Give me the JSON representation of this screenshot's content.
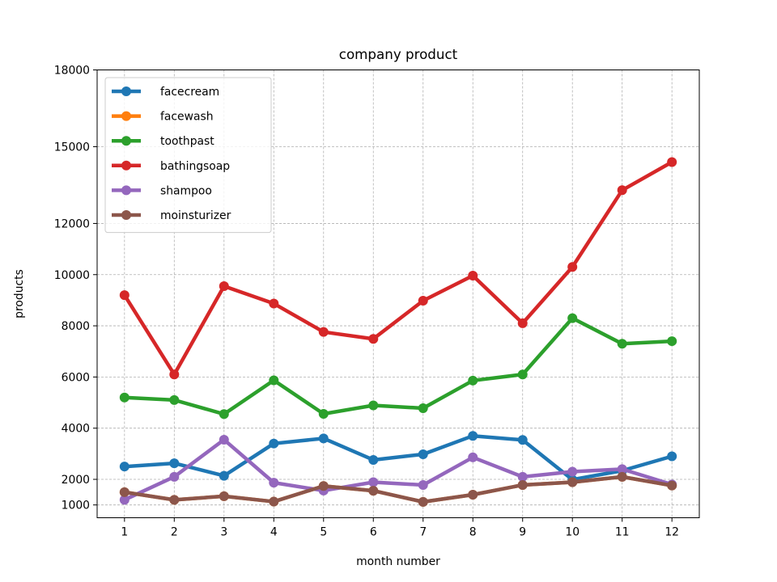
{
  "chart_data": {
    "type": "line",
    "title": "company product",
    "xlabel": "month number",
    "ylabel": "products",
    "x": [
      1,
      2,
      3,
      4,
      5,
      6,
      7,
      8,
      9,
      10,
      11,
      12
    ],
    "x_ticks": [
      "1",
      "2",
      "3",
      "4",
      "5",
      "6",
      "7",
      "8",
      "9",
      "10",
      "11",
      "12"
    ],
    "xlim": [
      0.45,
      12.55
    ],
    "y_ticks": [
      1000,
      2000,
      4000,
      6000,
      8000,
      10000,
      12000,
      15000,
      18000
    ],
    "y_tick_labels": [
      "1000",
      "2000",
      "4000",
      "6000",
      "8000",
      "10000",
      "12000",
      "15000",
      "18000"
    ],
    "ylim": [
      500,
      18000
    ],
    "grid": true,
    "legend_position": "top-left",
    "series": [
      {
        "name": "facecream",
        "color": "#1f77b4",
        "values": [
          2500,
          2630,
          2140,
          3400,
          3600,
          2760,
          2980,
          3700,
          3540,
          1990,
          2340,
          2900
        ]
      },
      {
        "name": "facewash",
        "color": "#ff7f0e",
        "values": [
          1500,
          1200,
          1340,
          1130,
          1740,
          1555,
          1120,
          1400,
          1780,
          1890,
          2100,
          1760
        ]
      },
      {
        "name": "toothpast",
        "color": "#2ca02c",
        "values": [
          5200,
          5100,
          4550,
          5870,
          4560,
          4890,
          4780,
          5860,
          6100,
          8300,
          7300,
          7400
        ]
      },
      {
        "name": "bathingsoap",
        "color": "#d62728",
        "values": [
          9200,
          6100,
          9550,
          8870,
          7760,
          7490,
          8980,
          9960,
          8100,
          10300,
          13300,
          14400
        ]
      },
      {
        "name": "shampoo",
        "color": "#9467bd",
        "values": [
          1200,
          2100,
          3550,
          1870,
          1560,
          1890,
          1780,
          2860,
          2100,
          2300,
          2400,
          1800
        ]
      },
      {
        "name": "moinsturizer",
        "color": "#8c564b",
        "values": [
          1500,
          1200,
          1340,
          1130,
          1740,
          1555,
          1120,
          1400,
          1780,
          1890,
          2100,
          1760
        ]
      }
    ]
  }
}
